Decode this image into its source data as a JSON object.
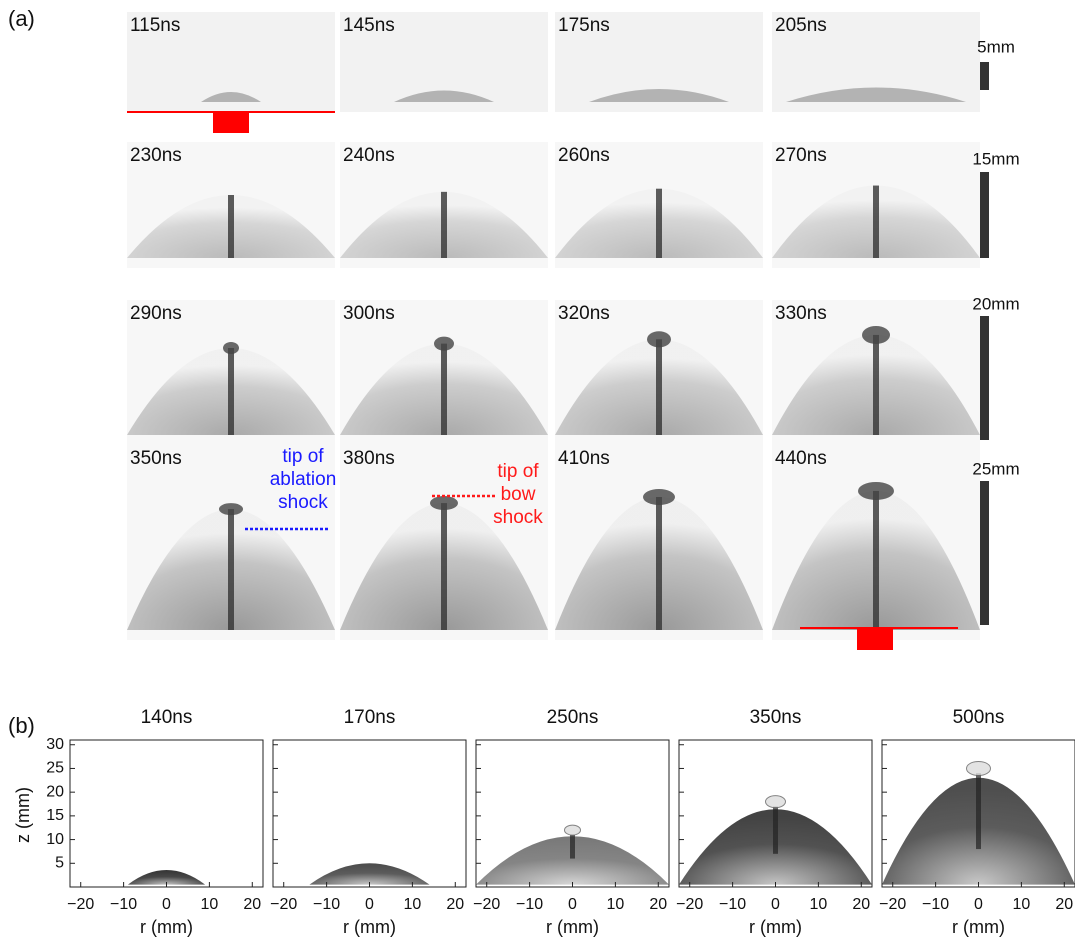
{
  "panel_a": {
    "label": "(a)",
    "rows": [
      {
        "scale": "5mm",
        "times": [
          "115ns",
          "145ns",
          "175ns",
          "205ns"
        ]
      },
      {
        "scale": "15mm",
        "times": [
          "230ns",
          "240ns",
          "260ns",
          "270ns"
        ]
      },
      {
        "scale": "20mm",
        "times": [
          "290ns",
          "300ns",
          "320ns",
          "330ns"
        ]
      },
      {
        "scale": "25mm",
        "times": [
          "350ns",
          "380ns",
          "410ns",
          "440ns"
        ]
      }
    ],
    "annotations": [
      {
        "lines": [
          "tip of",
          "ablation",
          "shock"
        ],
        "color": "#1a1aff"
      },
      {
        "lines": [
          "tip of",
          "bow",
          "shock"
        ],
        "color": "#ff1a1a"
      }
    ]
  },
  "panel_b": {
    "label": "(b)",
    "times": [
      "140ns",
      "170ns",
      "250ns",
      "350ns",
      "500ns"
    ],
    "ylabel": "z (mm)",
    "xlabel": "r (mm)",
    "ylim": [
      0,
      31
    ],
    "xlim": [
      -22.5,
      22.5
    ],
    "yticks": [
      5,
      10,
      15,
      20,
      25,
      30
    ],
    "xticks": [
      {
        "value": -20,
        "label": "−20"
      },
      {
        "value": -10,
        "label": "−10"
      },
      0,
      10,
      20
    ]
  }
}
